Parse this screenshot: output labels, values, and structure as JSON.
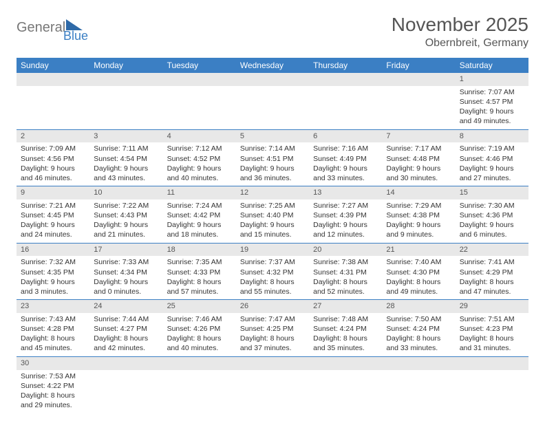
{
  "logo": {
    "word1": "General",
    "word2": "Blue",
    "word1_color": "#777777",
    "word2_color": "#3b7fc4"
  },
  "header": {
    "month_title": "November 2025",
    "location": "Obernbreit, Germany"
  },
  "colors": {
    "header_bg": "#3b7fc4",
    "header_text": "#ffffff",
    "row_divider": "#3b7fc4",
    "daynum_bg": "#e8e8e8",
    "body_text": "#333333",
    "title_text": "#555555"
  },
  "calendar": {
    "day_names": [
      "Sunday",
      "Monday",
      "Tuesday",
      "Wednesday",
      "Thursday",
      "Friday",
      "Saturday"
    ],
    "first_weekday_index": 6,
    "days": [
      {
        "n": 1,
        "sunrise": "7:07 AM",
        "sunset": "4:57 PM",
        "daylight": "9 hours and 49 minutes."
      },
      {
        "n": 2,
        "sunrise": "7:09 AM",
        "sunset": "4:56 PM",
        "daylight": "9 hours and 46 minutes."
      },
      {
        "n": 3,
        "sunrise": "7:11 AM",
        "sunset": "4:54 PM",
        "daylight": "9 hours and 43 minutes."
      },
      {
        "n": 4,
        "sunrise": "7:12 AM",
        "sunset": "4:52 PM",
        "daylight": "9 hours and 40 minutes."
      },
      {
        "n": 5,
        "sunrise": "7:14 AM",
        "sunset": "4:51 PM",
        "daylight": "9 hours and 36 minutes."
      },
      {
        "n": 6,
        "sunrise": "7:16 AM",
        "sunset": "4:49 PM",
        "daylight": "9 hours and 33 minutes."
      },
      {
        "n": 7,
        "sunrise": "7:17 AM",
        "sunset": "4:48 PM",
        "daylight": "9 hours and 30 minutes."
      },
      {
        "n": 8,
        "sunrise": "7:19 AM",
        "sunset": "4:46 PM",
        "daylight": "9 hours and 27 minutes."
      },
      {
        "n": 9,
        "sunrise": "7:21 AM",
        "sunset": "4:45 PM",
        "daylight": "9 hours and 24 minutes."
      },
      {
        "n": 10,
        "sunrise": "7:22 AM",
        "sunset": "4:43 PM",
        "daylight": "9 hours and 21 minutes."
      },
      {
        "n": 11,
        "sunrise": "7:24 AM",
        "sunset": "4:42 PM",
        "daylight": "9 hours and 18 minutes."
      },
      {
        "n": 12,
        "sunrise": "7:25 AM",
        "sunset": "4:40 PM",
        "daylight": "9 hours and 15 minutes."
      },
      {
        "n": 13,
        "sunrise": "7:27 AM",
        "sunset": "4:39 PM",
        "daylight": "9 hours and 12 minutes."
      },
      {
        "n": 14,
        "sunrise": "7:29 AM",
        "sunset": "4:38 PM",
        "daylight": "9 hours and 9 minutes."
      },
      {
        "n": 15,
        "sunrise": "7:30 AM",
        "sunset": "4:36 PM",
        "daylight": "9 hours and 6 minutes."
      },
      {
        "n": 16,
        "sunrise": "7:32 AM",
        "sunset": "4:35 PM",
        "daylight": "9 hours and 3 minutes."
      },
      {
        "n": 17,
        "sunrise": "7:33 AM",
        "sunset": "4:34 PM",
        "daylight": "9 hours and 0 minutes."
      },
      {
        "n": 18,
        "sunrise": "7:35 AM",
        "sunset": "4:33 PM",
        "daylight": "8 hours and 57 minutes."
      },
      {
        "n": 19,
        "sunrise": "7:37 AM",
        "sunset": "4:32 PM",
        "daylight": "8 hours and 55 minutes."
      },
      {
        "n": 20,
        "sunrise": "7:38 AM",
        "sunset": "4:31 PM",
        "daylight": "8 hours and 52 minutes."
      },
      {
        "n": 21,
        "sunrise": "7:40 AM",
        "sunset": "4:30 PM",
        "daylight": "8 hours and 49 minutes."
      },
      {
        "n": 22,
        "sunrise": "7:41 AM",
        "sunset": "4:29 PM",
        "daylight": "8 hours and 47 minutes."
      },
      {
        "n": 23,
        "sunrise": "7:43 AM",
        "sunset": "4:28 PM",
        "daylight": "8 hours and 45 minutes."
      },
      {
        "n": 24,
        "sunrise": "7:44 AM",
        "sunset": "4:27 PM",
        "daylight": "8 hours and 42 minutes."
      },
      {
        "n": 25,
        "sunrise": "7:46 AM",
        "sunset": "4:26 PM",
        "daylight": "8 hours and 40 minutes."
      },
      {
        "n": 26,
        "sunrise": "7:47 AM",
        "sunset": "4:25 PM",
        "daylight": "8 hours and 37 minutes."
      },
      {
        "n": 27,
        "sunrise": "7:48 AM",
        "sunset": "4:24 PM",
        "daylight": "8 hours and 35 minutes."
      },
      {
        "n": 28,
        "sunrise": "7:50 AM",
        "sunset": "4:24 PM",
        "daylight": "8 hours and 33 minutes."
      },
      {
        "n": 29,
        "sunrise": "7:51 AM",
        "sunset": "4:23 PM",
        "daylight": "8 hours and 31 minutes."
      },
      {
        "n": 30,
        "sunrise": "7:53 AM",
        "sunset": "4:22 PM",
        "daylight": "8 hours and 29 minutes."
      }
    ],
    "labels": {
      "sunrise": "Sunrise:",
      "sunset": "Sunset:",
      "daylight": "Daylight:"
    }
  }
}
